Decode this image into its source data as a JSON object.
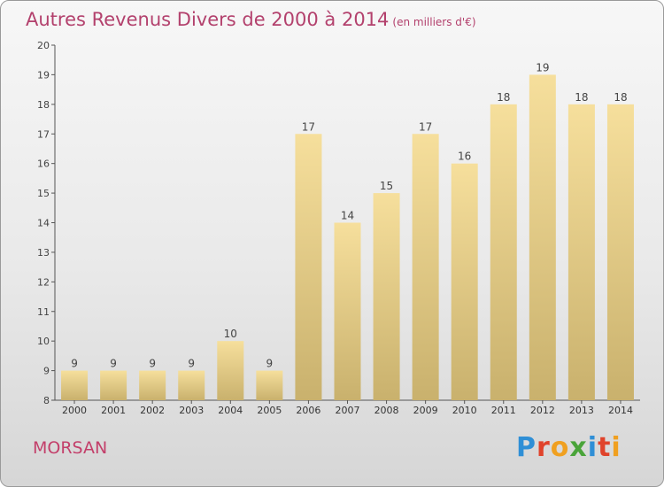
{
  "header": {
    "title": "Autres Revenus Divers de 2000 à 2014",
    "unit": "(en milliers d'€)"
  },
  "footer": {
    "city": "MORSAN",
    "brand": [
      "P",
      "r",
      "o",
      "x",
      "i",
      "t",
      "i"
    ]
  },
  "colors": {
    "title": "#b3416d",
    "bar_top": "#f6df9c",
    "bar_bottom": "#c9b16d",
    "brand": [
      "#2f8fd6",
      "#e0432b",
      "#f0a020",
      "#4aa43a",
      "#2f8fd6",
      "#e0432b",
      "#f0a020"
    ]
  },
  "chart_data": {
    "type": "bar",
    "title": "Autres Revenus Divers de 2000 à 2014",
    "subtitle": "(en milliers d'€)",
    "categories": [
      "2000",
      "2001",
      "2002",
      "2003",
      "2004",
      "2005",
      "2006",
      "2007",
      "2008",
      "2009",
      "2010",
      "2011",
      "2012",
      "2013",
      "2014"
    ],
    "values": [
      9,
      9,
      9,
      9,
      10,
      9,
      17,
      14,
      15,
      17,
      16,
      18,
      19,
      18,
      18
    ],
    "ylim": [
      8,
      20
    ],
    "yticks": [
      8,
      9,
      10,
      11,
      12,
      13,
      14,
      15,
      16,
      17,
      18,
      19,
      20
    ],
    "grid": false,
    "data_labels": true
  }
}
